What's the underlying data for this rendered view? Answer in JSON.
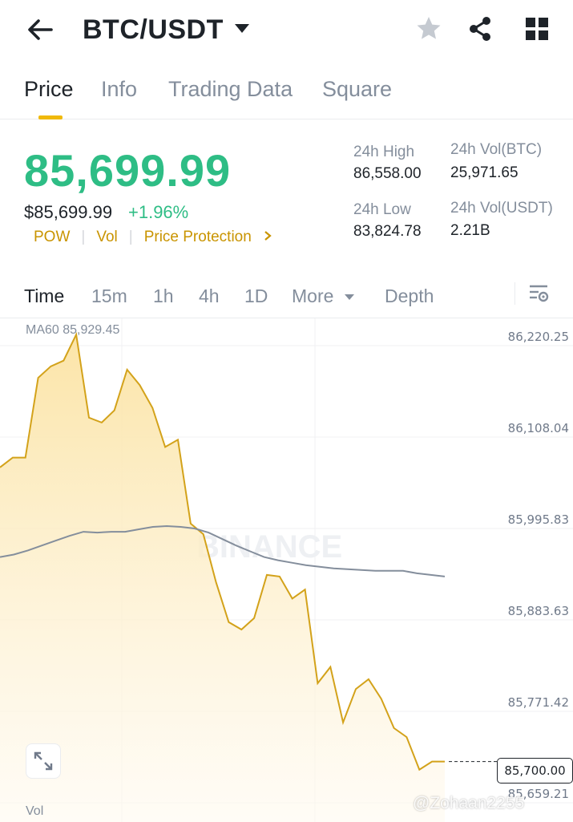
{
  "header": {
    "pair": "BTC/USDT",
    "icons": {
      "back": "arrow-left-icon",
      "caret": "caret-down-icon",
      "favorite": "star-icon",
      "share": "share-icon",
      "grid": "grid-icon"
    }
  },
  "tabs": [
    {
      "label": "Price",
      "active": true
    },
    {
      "label": "Info",
      "active": false
    },
    {
      "label": "Trading Data",
      "active": false
    },
    {
      "label": "Square",
      "active": false
    }
  ],
  "ticker": {
    "last_price": "85,699.99",
    "usd_price": "$85,699.99",
    "change": "+1.96%",
    "tags": [
      "POW",
      "Vol",
      "Price Protection"
    ],
    "stats": {
      "high_label": "24h High",
      "high_value": "86,558.00",
      "low_label": "24h Low",
      "low_value": "83,824.78",
      "vol_btc_label": "24h Vol(BTC)",
      "vol_btc_value": "25,971.65",
      "vol_usdt_label": "24h Vol(USDT)",
      "vol_usdt_value": "2.21B"
    }
  },
  "intervals": {
    "time": "Time",
    "items": [
      "15m",
      "1h",
      "4h",
      "1D"
    ],
    "more": "More",
    "depth": "Depth"
  },
  "chart": {
    "ma_label": "MA60 85,929.45",
    "y_ticks": [
      "86,220.25",
      "86,108.04",
      "85,995.83",
      "85,883.63",
      "85,771.42",
      "85,659.21"
    ],
    "current_price": "85,700.00",
    "vol_label": "Vol",
    "watermark_brand": "BINANCE",
    "watermark_user": "@Zohaan2255"
  },
  "colors": {
    "up": "#2ebd85",
    "accent": "#f0b90b",
    "line": "#d3a21a",
    "ma": "#848e9c"
  },
  "chart_data": {
    "type": "area",
    "y_axis_ticks": [
      86220.25,
      86108.04,
      85995.83,
      85883.63,
      85771.42,
      85659.21
    ],
    "ylim": [
      85659.21,
      86220.25
    ],
    "series": [
      {
        "name": "Price",
        "values": [
          86060,
          86072,
          86072,
          86170,
          86184,
          86191,
          86223,
          86121,
          86115,
          86130,
          86180,
          86161,
          86133,
          86085,
          86094,
          85991,
          85978,
          85919,
          85870,
          85861,
          85875,
          85928,
          85926,
          85899,
          85910,
          85795,
          85815,
          85747,
          85788,
          85800,
          85776,
          85740,
          85729,
          85689,
          85699,
          85699
        ]
      },
      {
        "name": "MA60",
        "values": [
          85950,
          85953,
          85958,
          85964,
          85970,
          85976,
          85981,
          85980,
          85981,
          85981,
          85984,
          85987,
          85988,
          85987,
          85985,
          85980,
          85972,
          85964,
          85957,
          85950,
          85946,
          85943,
          85940,
          85938,
          85936,
          85935,
          85934,
          85933,
          85933,
          85933,
          85930,
          85928,
          85926
        ]
      }
    ]
  }
}
